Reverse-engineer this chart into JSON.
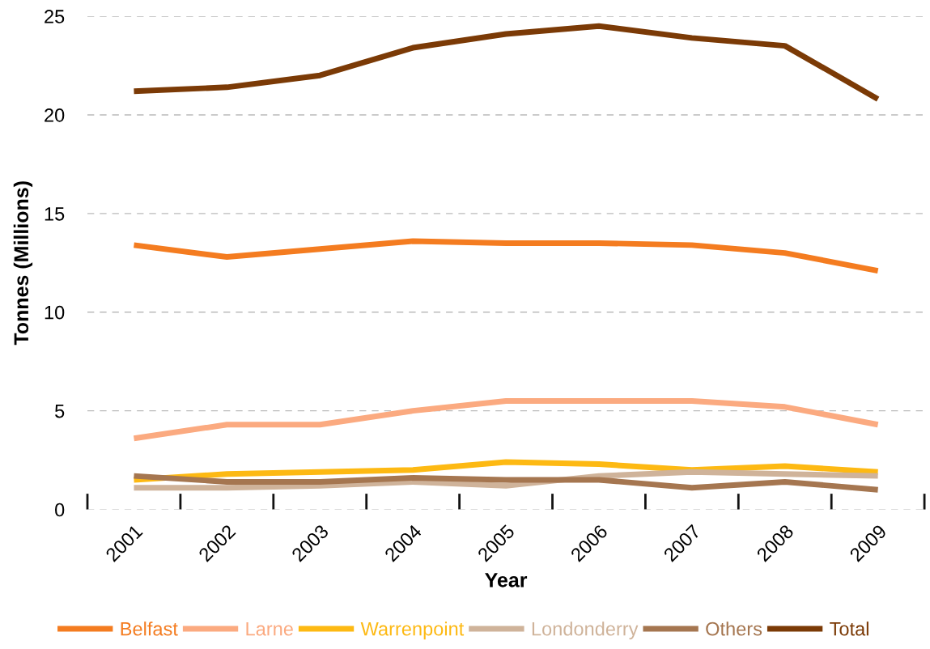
{
  "chart_data": {
    "type": "line",
    "xlabel": "Year",
    "ylabel": "Tonnes (Millions)",
    "categories": [
      "2001",
      "2002",
      "2003",
      "2004",
      "2005",
      "2006",
      "2007",
      "2008",
      "2009"
    ],
    "ylim": [
      0,
      25
    ],
    "yticks": [
      0,
      5,
      10,
      15,
      20,
      25
    ],
    "grid": "y",
    "legend": "bottom",
    "line_style": "solid",
    "marker": "none",
    "series": [
      {
        "name": "Belfast",
        "color": "#f47c20",
        "values": [
          13.4,
          12.8,
          13.2,
          13.6,
          13.5,
          13.5,
          13.4,
          13.0,
          12.1
        ]
      },
      {
        "name": "Larne",
        "color": "#fbaa80",
        "values": [
          3.6,
          4.3,
          4.3,
          5.0,
          5.5,
          5.5,
          5.5,
          5.2,
          4.3
        ]
      },
      {
        "name": "Warrenpoint",
        "color": "#fdb913",
        "values": [
          1.5,
          1.8,
          1.9,
          2.0,
          2.4,
          2.3,
          2.0,
          2.2,
          1.9
        ]
      },
      {
        "name": "Londonderry",
        "color": "#cfb39a",
        "values": [
          1.1,
          1.1,
          1.2,
          1.4,
          1.2,
          1.7,
          1.9,
          1.8,
          1.7
        ]
      },
      {
        "name": "Others",
        "color": "#a57650",
        "values": [
          1.7,
          1.4,
          1.4,
          1.6,
          1.5,
          1.5,
          1.1,
          1.4,
          1.0
        ]
      },
      {
        "name": "Total",
        "color": "#7b3a06",
        "values": [
          21.2,
          21.4,
          22.0,
          23.4,
          24.1,
          24.5,
          23.9,
          23.5,
          20.8
        ]
      }
    ]
  }
}
